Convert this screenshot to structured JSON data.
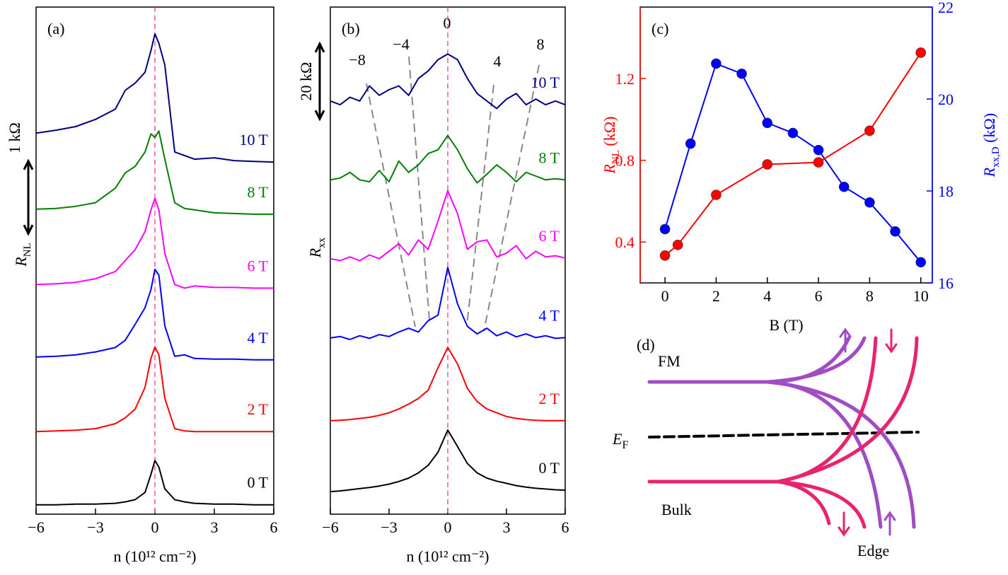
{
  "chart_data": [
    {
      "type": "line",
      "panel_label": "(a)",
      "xlabel": "n (10¹² cm⁻²)",
      "ylabel": {
        "main": "R",
        "sub": "NL"
      },
      "xlim": [
        -6,
        6
      ],
      "ylim": [
        0,
        7
      ],
      "xticks": [
        {
          "value": -6,
          "label": "−6"
        },
        {
          "value": -3,
          "label": "−3"
        },
        0,
        3,
        6
      ],
      "vline": {
        "x": 0,
        "color": "#ff4fa3"
      },
      "scale_bar": {
        "label": "1 kΩ",
        "value": 1
      },
      "x": [
        -6,
        -5,
        -4,
        -3,
        -2,
        -1.5,
        -1,
        -0.5,
        -0.2,
        0,
        0.2,
        0.5,
        1,
        1.5,
        2,
        3,
        4,
        5,
        6
      ],
      "series": [
        {
          "name": "0 T",
          "color": "#000000",
          "values": [
            0.13,
            0.13,
            0.14,
            0.14,
            0.15,
            0.17,
            0.2,
            0.3,
            0.55,
            0.74,
            0.65,
            0.35,
            0.2,
            0.17,
            0.15,
            0.14,
            0.14,
            0.13,
            0.13
          ]
        },
        {
          "name": "2 T",
          "color": "#ff0000",
          "values": [
            1.14,
            1.15,
            1.16,
            1.18,
            1.25,
            1.33,
            1.45,
            1.75,
            2.15,
            2.31,
            2.2,
            1.6,
            1.18,
            1.15,
            1.14,
            1.14,
            1.14,
            1.14,
            1.14
          ]
        },
        {
          "name": "4 T",
          "color": "#0000ff",
          "values": [
            2.17,
            2.18,
            2.2,
            2.24,
            2.3,
            2.4,
            2.62,
            2.85,
            3.1,
            3.38,
            3.3,
            2.6,
            2.18,
            2.2,
            2.15,
            2.14,
            2.14,
            2.13,
            2.13
          ]
        },
        {
          "name": "6 T",
          "color": "#ff00ff",
          "values": [
            3.17,
            3.18,
            3.2,
            3.25,
            3.35,
            3.5,
            3.65,
            3.9,
            4.2,
            4.36,
            4.2,
            3.6,
            3.17,
            3.12,
            3.15,
            3.13,
            3.13,
            3.12,
            3.12
          ]
        },
        {
          "name": "8 T",
          "color": "#007f00",
          "values": [
            4.21,
            4.22,
            4.25,
            4.3,
            4.5,
            4.71,
            4.8,
            5.0,
            5.25,
            5.2,
            5.29,
            4.9,
            4.3,
            4.22,
            4.2,
            4.16,
            4.15,
            4.14,
            4.14
          ]
        },
        {
          "name": "10 T",
          "color": "#000080",
          "values": [
            5.26,
            5.3,
            5.35,
            5.45,
            5.59,
            5.85,
            5.95,
            6.1,
            6.4,
            6.63,
            6.5,
            6.2,
            5.0,
            4.95,
            4.9,
            4.92,
            4.88,
            4.87,
            4.86
          ]
        }
      ]
    },
    {
      "type": "line",
      "panel_label": "(b)",
      "xlabel": "n (10¹² cm⁻²)",
      "ylabel": {
        "main": "R",
        "sub": "xx"
      },
      "xlim": [
        -6,
        6
      ],
      "ylim": [
        0,
        135
      ],
      "xticks": [
        {
          "value": -6,
          "label": "−6"
        },
        {
          "value": -3,
          "label": "−3"
        },
        0,
        3,
        6
      ],
      "vline": {
        "x": 0,
        "color": "#ff4fa3"
      },
      "scale_bar": {
        "label": "20 kΩ",
        "value": 20
      },
      "guide_labels": [
        "−8",
        "−4",
        "0",
        "4",
        "8"
      ],
      "x": [
        -6,
        -5.5,
        -5,
        -4.5,
        -4,
        -3.5,
        -3,
        -2.5,
        -2,
        -1.5,
        -1,
        -0.5,
        0,
        0.5,
        1,
        1.5,
        2,
        2.5,
        3,
        3.5,
        4,
        4.5,
        5,
        5.5,
        6
      ],
      "series": [
        {
          "name": "0 T",
          "color": "#000000",
          "values": [
            6.0,
            6.2,
            6.5,
            6.8,
            7.1,
            7.5,
            8.0,
            8.7,
            9.6,
            11,
            13,
            16.5,
            22.4,
            18,
            13.5,
            11,
            9.6,
            8.8,
            8.2,
            7.6,
            7.2,
            6.9,
            6.7,
            6.5,
            6.4
          ]
        },
        {
          "name": "2 T",
          "color": "#ff0000",
          "values": [
            24.9,
            25,
            25.2,
            25.5,
            25.8,
            26.3,
            27,
            28,
            29.3,
            30.8,
            33,
            39,
            44.4,
            40,
            33.5,
            30,
            28,
            27,
            26,
            25.5,
            25.2,
            25,
            24.9,
            24.9,
            24.9
          ]
        },
        {
          "name": "4 T",
          "color": "#0000ff",
          "values": [
            46.9,
            47.3,
            46.5,
            47.5,
            46.8,
            47.8,
            47.3,
            48.5,
            49.5,
            48.5,
            51.5,
            53,
            65.7,
            56,
            50,
            48,
            49.5,
            47.5,
            48.5,
            47.2,
            48,
            47,
            47.5,
            46.8,
            47
          ]
        },
        {
          "name": "6 T",
          "color": "#ff00ff",
          "values": [
            68,
            67.5,
            68.5,
            67.5,
            69,
            68,
            70,
            72,
            69,
            73,
            70.5,
            78,
            86.1,
            80,
            70.5,
            72.5,
            73,
            68.5,
            69.5,
            71.5,
            68,
            70,
            68.5,
            68.8,
            68.2
          ]
        },
        {
          "name": "8 T",
          "color": "#007f00",
          "values": [
            89,
            89.5,
            91,
            89,
            88.5,
            91.5,
            88.5,
            94,
            91,
            93,
            96,
            97,
            100.8,
            97,
            92,
            88.2,
            90.5,
            93,
            91,
            88.5,
            91,
            90,
            89,
            89.3,
            89
          ]
        },
        {
          "name": "10 T",
          "color": "#000080",
          "values": [
            110,
            109,
            111,
            110,
            114,
            111.5,
            113,
            114,
            111.5,
            116,
            118,
            121,
            122.5,
            121,
            116,
            112,
            110,
            108,
            110.5,
            112,
            109,
            110.5,
            109,
            110,
            109
          ]
        }
      ]
    },
    {
      "type": "line",
      "markers": true,
      "panel_label": "(c)",
      "xlabel": "B (T)",
      "ylabel": {
        "main": "R",
        "sub": "NL",
        "unit": " (kΩ)"
      },
      "y2label": {
        "main": "R",
        "sub": "xx,D",
        "unit": " (kΩ)"
      },
      "xlim": [
        -0.97,
        10.45
      ],
      "ylim": [
        0.2,
        1.55
      ],
      "y2lim": [
        16,
        22
      ],
      "xticks": [
        0,
        2,
        4,
        6,
        8,
        10
      ],
      "yticks": [
        0.4,
        0.8,
        1.2
      ],
      "y2ticks": [
        16,
        18,
        20,
        22
      ],
      "series": [
        {
          "color": "#0000ff",
          "axis": "y2",
          "x": [
            0,
            1,
            2,
            3,
            4,
            5,
            6,
            7,
            8,
            9,
            10
          ],
          "values": [
            17.17,
            19.03,
            20.77,
            20.55,
            19.48,
            19.26,
            18.89,
            18.09,
            17.75,
            17.12,
            16.45
          ]
        },
        {
          "color": "#ff0000",
          "x": [
            0,
            0.5,
            2,
            4,
            6,
            8,
            10
          ],
          "values": [
            0.334,
            0.386,
            0.631,
            0.78,
            0.79,
            0.945,
            1.327
          ]
        }
      ]
    }
  ],
  "diagram": {
    "panel_label": "(d)",
    "fm": "FM",
    "bulk": "Bulk",
    "fermi": {
      "main": "E",
      "sub": "F"
    },
    "edge": "Edge"
  }
}
